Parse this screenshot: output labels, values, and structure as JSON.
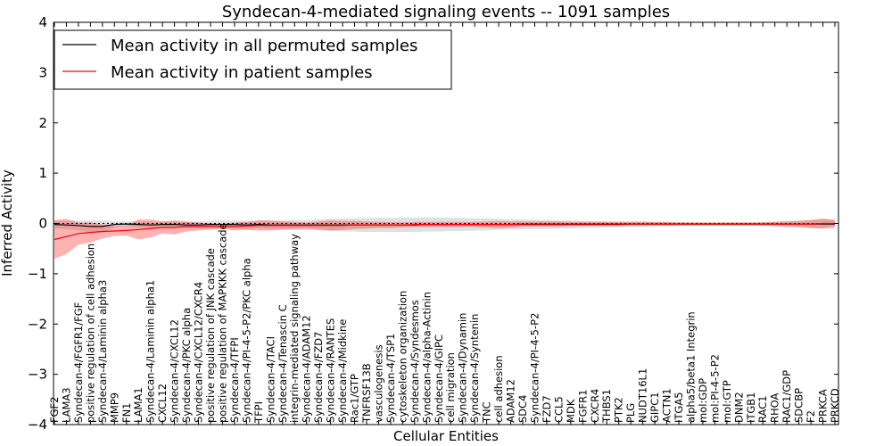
{
  "chart_data": {
    "type": "line",
    "title": "Syndecan-4-mediated signaling events -- 1091 samples",
    "xlabel": "Cellular Entities",
    "ylabel": "Inferred Activity",
    "ylim": [
      -4,
      4
    ],
    "yticks": [
      -4,
      -3,
      -2,
      -1,
      0,
      1,
      2,
      3,
      4
    ],
    "grid": false,
    "legend_position": "top-left",
    "categories": [
      "FGF2",
      "LAMA3",
      "Syndecan-4/FGFR1/FGF",
      "positive regulation of cell adhesion",
      "Syndecan-4/Laminin alpha3",
      "MMP9",
      "FN1",
      "LAMA1",
      "Syndecan-4/Laminin alpha1",
      "CXCL12",
      "Syndecan-4/CXCL12",
      "Syndecan-4/PKC alpha",
      "Syndecan-4/CXCL12/CXCR4",
      "positive regulation of JNK cascade",
      "positive regulation of MAPKKK cascade",
      "Syndecan-4/TFPI",
      "Syndecan-4/PI-4-5-P2/PKC alpha",
      "TFPI",
      "Syndecan-4/TACI",
      "Syndecan-4/Tenascin C",
      "integrin-mediated signaling pathway",
      "Syndecan-4/ADAM12",
      "Syndecan-4/FZD7",
      "Syndecan-4/RANTES",
      "Syndecan-4/Midkine",
      "Rac1/GTP",
      "TNFRSF13B",
      "vasculogenesis",
      "Syndecan-4/TSP1",
      "cytoskeleton organization",
      "Syndecan-4/Syndesmos",
      "Syndecan-4/alpha-Actinin",
      "Syndecan-4/GIPC",
      "cell migration",
      "Syndecan-4/Dynamin",
      "Syndecan-4/Syntenin",
      "TNC",
      "cell adhesion",
      "ADAM12",
      "SDC4",
      "Syndecan-4/PI-4-5-P2",
      "FZD7",
      "CCL5",
      "MDK",
      "FGFR1",
      "CXCR4",
      "THBS1",
      "PTK2",
      "PLG",
      "NUDT16L1",
      "GIPC1",
      "ACTN1",
      "ITGA5",
      "alpha5/beta1 Integrin",
      "mol:GDP",
      "mol:PI-4-5-P2",
      "mol:GTP",
      "DNM2",
      "ITGB1",
      "RAC1",
      "RHOA",
      "RAC1/GDP",
      "SDCBP",
      "F2",
      "PRKCA",
      "PRKCD"
    ],
    "series": [
      {
        "name": "Mean activity in all permuted samples",
        "color": "#000000",
        "values": [
          -0.02,
          -0.03,
          -0.04,
          -0.06,
          -0.06,
          -0.02,
          -0.01,
          -0.02,
          -0.03,
          -0.02,
          -0.02,
          -0.03,
          -0.03,
          -0.02,
          -0.02,
          -0.02,
          -0.03,
          -0.02,
          -0.03,
          -0.03,
          -0.03,
          -0.03,
          -0.03,
          -0.03,
          -0.03,
          -0.03,
          -0.03,
          -0.03,
          -0.03,
          -0.03,
          -0.03,
          -0.02,
          -0.02,
          -0.02,
          -0.02,
          -0.02,
          -0.02,
          -0.02,
          -0.02,
          -0.02,
          -0.02,
          -0.02,
          -0.02,
          -0.02,
          -0.02,
          -0.02,
          -0.02,
          -0.02,
          -0.01,
          -0.01,
          -0.01,
          -0.01,
          -0.01,
          -0.01,
          -0.01,
          -0.01,
          -0.01,
          -0.01,
          -0.01,
          -0.01,
          -0.01,
          -0.01,
          -0.01,
          -0.01,
          -0.01,
          -0.01
        ],
        "band": [
          0.08,
          0.08,
          0.1,
          0.12,
          0.12,
          0.06,
          0.05,
          0.06,
          0.06,
          0.06,
          0.06,
          0.06,
          0.07,
          0.07,
          0.08,
          0.08,
          0.08,
          0.08,
          0.08,
          0.09,
          0.1,
          0.1,
          0.11,
          0.12,
          0.13,
          0.13,
          0.14,
          0.14,
          0.14,
          0.14,
          0.14,
          0.14,
          0.14,
          0.13,
          0.13,
          0.12,
          0.12,
          0.11,
          0.1,
          0.1,
          0.09,
          0.09,
          0.08,
          0.08,
          0.07,
          0.07,
          0.06,
          0.06,
          0.05,
          0.05,
          0.04,
          0.04,
          0.04,
          0.03,
          0.03,
          0.03,
          0.03,
          0.03,
          0.03,
          0.04,
          0.05,
          0.06,
          0.07,
          0.08,
          0.09,
          0.1
        ]
      },
      {
        "name": "Mean activity in patient samples",
        "color": "#ff0000",
        "values": [
          -0.32,
          -0.26,
          -0.2,
          -0.18,
          -0.16,
          -0.15,
          -0.14,
          -0.12,
          -0.1,
          -0.08,
          -0.08,
          -0.06,
          -0.06,
          -0.06,
          -0.06,
          -0.06,
          -0.05,
          -0.04,
          -0.04,
          -0.04,
          -0.04,
          -0.04,
          -0.04,
          -0.04,
          -0.04,
          -0.03,
          -0.03,
          -0.03,
          -0.03,
          -0.03,
          -0.02,
          -0.02,
          -0.02,
          -0.02,
          -0.02,
          -0.02,
          -0.02,
          -0.02,
          -0.02,
          -0.01,
          -0.01,
          -0.01,
          -0.01,
          -0.01,
          -0.01,
          -0.01,
          -0.01,
          -0.01,
          -0.01,
          -0.01,
          -0.01,
          -0.01,
          -0.01,
          -0.01,
          -0.01,
          -0.01,
          -0.01,
          -0.01,
          -0.01,
          -0.01,
          -0.01,
          -0.01,
          -0.01,
          -0.01,
          0.0,
          0.0
        ],
        "band": [
          0.38,
          0.35,
          0.22,
          0.2,
          0.14,
          0.1,
          0.1,
          0.2,
          0.18,
          0.12,
          0.14,
          0.1,
          0.08,
          0.06,
          0.05,
          0.08,
          0.08,
          0.1,
          0.1,
          0.08,
          0.07,
          0.06,
          0.08,
          0.1,
          0.09,
          0.08,
          0.07,
          0.06,
          0.06,
          0.05,
          0.05,
          0.05,
          0.05,
          0.05,
          0.05,
          0.05,
          0.06,
          0.07,
          0.06,
          0.05,
          0.05,
          0.05,
          0.05,
          0.04,
          0.04,
          0.04,
          0.04,
          0.04,
          0.04,
          0.04,
          0.04,
          0.04,
          0.03,
          0.03,
          0.03,
          0.03,
          0.03,
          0.03,
          0.03,
          0.03,
          0.04,
          0.05,
          0.06,
          0.08,
          0.1,
          0.06
        ]
      }
    ]
  }
}
